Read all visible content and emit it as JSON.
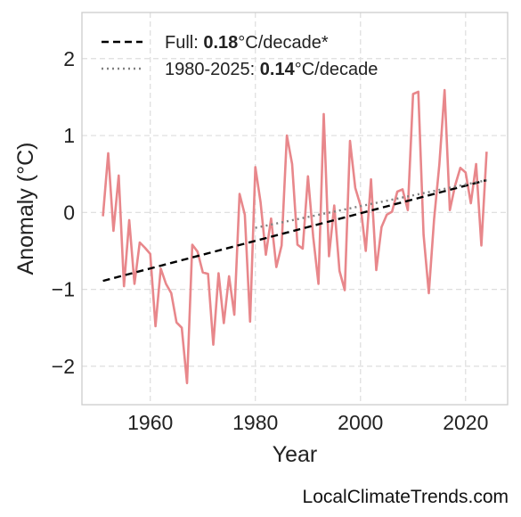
{
  "chart_data": {
    "type": "line",
    "title": "",
    "xlabel": "Year",
    "ylabel": "Anomaly (°C)",
    "xlim": [
      1947,
      2028
    ],
    "ylim": [
      -2.5,
      2.6
    ],
    "xticks": [
      1960,
      1980,
      2000,
      2020
    ],
    "xtick_labels": [
      "1960",
      "1980",
      "2000",
      "2020"
    ],
    "yticks": [
      -2,
      -1,
      0,
      1,
      2
    ],
    "ytick_labels": [
      "−2",
      "−1",
      "0",
      "1",
      "2"
    ],
    "grid": true,
    "legend_position": "top-left",
    "series": [
      {
        "style": "solid",
        "color": "#e8878b",
        "x": [
          1951,
          1952,
          1953,
          1954,
          1955,
          1956,
          1957,
          1958,
          1959,
          1960,
          1961,
          1962,
          1963,
          1964,
          1965,
          1966,
          1967,
          1968,
          1969,
          1970,
          1971,
          1972,
          1973,
          1974,
          1975,
          1976,
          1977,
          1978,
          1979,
          1980,
          1981,
          1982,
          1983,
          1984,
          1985,
          1986,
          1987,
          1988,
          1989,
          1990,
          1991,
          1992,
          1993,
          1994,
          1995,
          1996,
          1997,
          1998,
          1999,
          2000,
          2001,
          2002,
          2003,
          2004,
          2005,
          2006,
          2007,
          2008,
          2009,
          2010,
          2011,
          2012,
          2013,
          2014,
          2015,
          2016,
          2017,
          2018,
          2019,
          2020,
          2021,
          2022,
          2023,
          2024
        ],
        "y": [
          -0.05,
          0.77,
          -0.24,
          0.48,
          -0.96,
          -0.1,
          -0.93,
          -0.39,
          -0.46,
          -0.54,
          -1.48,
          -0.73,
          -0.93,
          -1.05,
          -1.43,
          -1.5,
          -2.22,
          -0.42,
          -0.51,
          -0.78,
          -0.8,
          -1.72,
          -0.79,
          -1.44,
          -0.83,
          -1.33,
          0.24,
          -0.03,
          -1.42,
          0.59,
          0.13,
          -0.55,
          -0.08,
          -0.71,
          -0.43,
          1.0,
          0.63,
          -0.42,
          -0.47,
          0.47,
          -0.32,
          -0.93,
          1.28,
          -0.57,
          0.09,
          -0.76,
          -1.01,
          0.93,
          0.32,
          0.09,
          -0.5,
          0.43,
          -0.75,
          -0.19,
          -0.03,
          0.01,
          0.27,
          0.3,
          0.03,
          1.54,
          1.57,
          -0.29,
          -1.05,
          -0.09,
          0.62,
          1.59,
          0.03,
          0.35,
          0.58,
          0.52,
          0.12,
          0.63,
          -0.43,
          0.79
        ]
      },
      {
        "name": "Full: 0.18°C/decade*",
        "style": "dashed",
        "color": "#000000",
        "x": [
          1951,
          2024
        ],
        "y": [
          -0.89,
          0.42
        ]
      },
      {
        "name": "1980-2025: 0.14°C/decade",
        "style": "dotted",
        "color": "#808080",
        "x": [
          1980,
          2024
        ],
        "y": [
          -0.2,
          0.42
        ]
      }
    ],
    "legend": [
      {
        "prefix": "Full: ",
        "bold": "0.18",
        "suffix": "°C/decade*",
        "style": "dashed",
        "color": "#000000"
      },
      {
        "prefix": "1980-2025: ",
        "bold": "0.14",
        "suffix": "°C/decade",
        "style": "dotted",
        "color": "#808080"
      }
    ]
  },
  "footer": {
    "source": "LocalClimateTrends.com"
  }
}
